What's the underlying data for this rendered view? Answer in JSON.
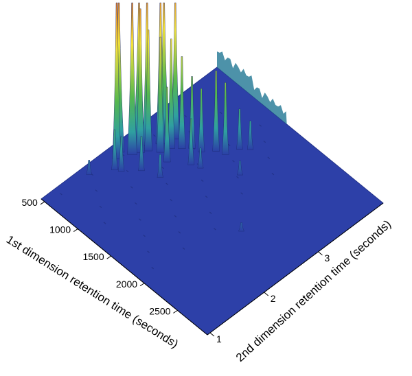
{
  "chart_data": {
    "type": "surface-3d",
    "title": "",
    "xlabel": "1st dimension retention time (seconds)",
    "ylabel": "2nd dimension retention time (seconds)",
    "x_ticks": [
      "500",
      "1000",
      "1500",
      "2000",
      "2500"
    ],
    "y_ticks": [
      "1",
      "2",
      "3"
    ],
    "xlim": [
      450,
      2950
    ],
    "ylim": [
      0.95,
      4.2
    ],
    "zlim": [
      0,
      1
    ],
    "colormap": [
      "#2b3fa6",
      "#2fa0a0",
      "#56b84e",
      "#f2e23a",
      "#d44520",
      "#6b0d0d"
    ],
    "peaks": [
      {
        "t1": 560,
        "t2": 2.25,
        "h": 1.0
      },
      {
        "t1": 620,
        "t2": 2.55,
        "h": 1.0
      },
      {
        "t1": 610,
        "t2": 2.15,
        "h": 0.55
      },
      {
        "t1": 680,
        "t2": 2.35,
        "h": 0.75
      },
      {
        "t1": 700,
        "t2": 2.6,
        "h": 0.65
      },
      {
        "t1": 720,
        "t2": 2.45,
        "h": 0.5
      },
      {
        "t1": 750,
        "t2": 2.85,
        "h": 0.86
      },
      {
        "t1": 780,
        "t2": 2.75,
        "h": 0.7
      },
      {
        "t1": 760,
        "t2": 2.55,
        "h": 0.42
      },
      {
        "t1": 840,
        "t2": 2.95,
        "h": 0.55
      },
      {
        "t1": 860,
        "t2": 2.65,
        "h": 0.4
      },
      {
        "t1": 900,
        "t2": 2.8,
        "h": 0.38
      },
      {
        "t1": 980,
        "t2": 2.9,
        "h": 0.32
      },
      {
        "t1": 1050,
        "t2": 3.0,
        "h": 0.25
      },
      {
        "t1": 1000,
        "t2": 2.6,
        "h": 0.26
      },
      {
        "t1": 1150,
        "t2": 3.05,
        "h": 0.22
      },
      {
        "t1": 1200,
        "t2": 2.8,
        "h": 0.16
      },
      {
        "t1": 1250,
        "t2": 3.2,
        "h": 0.28
      },
      {
        "t1": 1350,
        "t2": 3.25,
        "h": 0.25
      },
      {
        "t1": 1400,
        "t2": 3.45,
        "h": 0.14
      },
      {
        "t1": 1480,
        "t2": 3.55,
        "h": 0.1
      },
      {
        "t1": 700,
        "t2": 2.0,
        "h": 0.14
      },
      {
        "t1": 760,
        "t2": 2.05,
        "h": 0.12
      },
      {
        "t1": 900,
        "t2": 2.25,
        "h": 0.12
      },
      {
        "t1": 1100,
        "t2": 2.35,
        "h": 0.08
      },
      {
        "t1": 1300,
        "t2": 2.85,
        "h": 0.07
      },
      {
        "t1": 1650,
        "t2": 3.15,
        "h": 0.05
      },
      {
        "t1": 560,
        "t2": 1.7,
        "h": 0.05
      },
      {
        "t1": 2200,
        "t2": 2.5,
        "h": 0.03
      }
    ]
  }
}
